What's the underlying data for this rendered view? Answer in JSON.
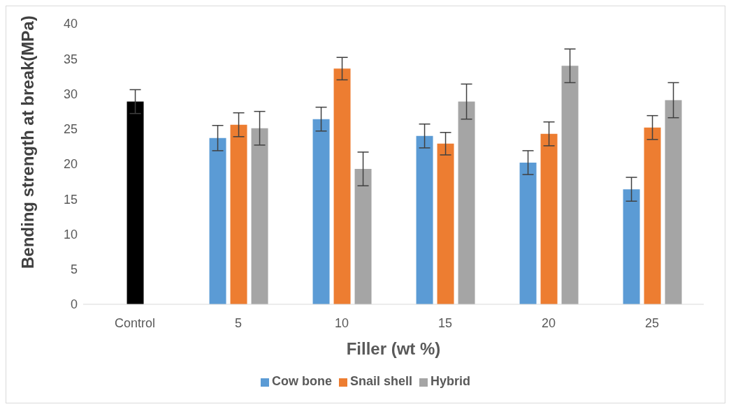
{
  "chart_data": {
    "type": "bar",
    "xlabel": "Filler (wt %)",
    "ylabel": "Bending strength at break(MPa)",
    "categories": [
      "Control",
      "5",
      "10",
      "15",
      "20",
      "25"
    ],
    "series": [
      {
        "name": "Cow bone",
        "color": "#5b9bd5",
        "values": [
          null,
          23.7,
          26.4,
          24.0,
          20.2,
          16.4
        ],
        "errors": [
          null,
          1.8,
          1.7,
          1.7,
          1.7,
          1.7
        ]
      },
      {
        "name": "Snail shell",
        "color": "#ed7d31",
        "colors": [
          "#000000",
          "#ed7d31",
          "#ed7d31",
          "#ed7d31",
          "#ed7d31",
          "#ed7d31"
        ],
        "values": [
          28.9,
          25.6,
          33.6,
          22.9,
          24.3,
          25.2
        ],
        "errors": [
          1.7,
          1.7,
          1.6,
          1.6,
          1.7,
          1.7
        ]
      },
      {
        "name": "Hybrid",
        "color": "#a5a5a5",
        "values": [
          null,
          25.1,
          19.3,
          28.9,
          34.0,
          29.1
        ],
        "errors": [
          null,
          2.4,
          2.4,
          2.5,
          2.4,
          2.5
        ]
      }
    ],
    "ylim": [
      0,
      40
    ],
    "yticks": [
      0,
      5,
      10,
      15,
      20,
      25,
      30,
      35,
      40
    ],
    "grid": false,
    "legend": "bottom"
  }
}
